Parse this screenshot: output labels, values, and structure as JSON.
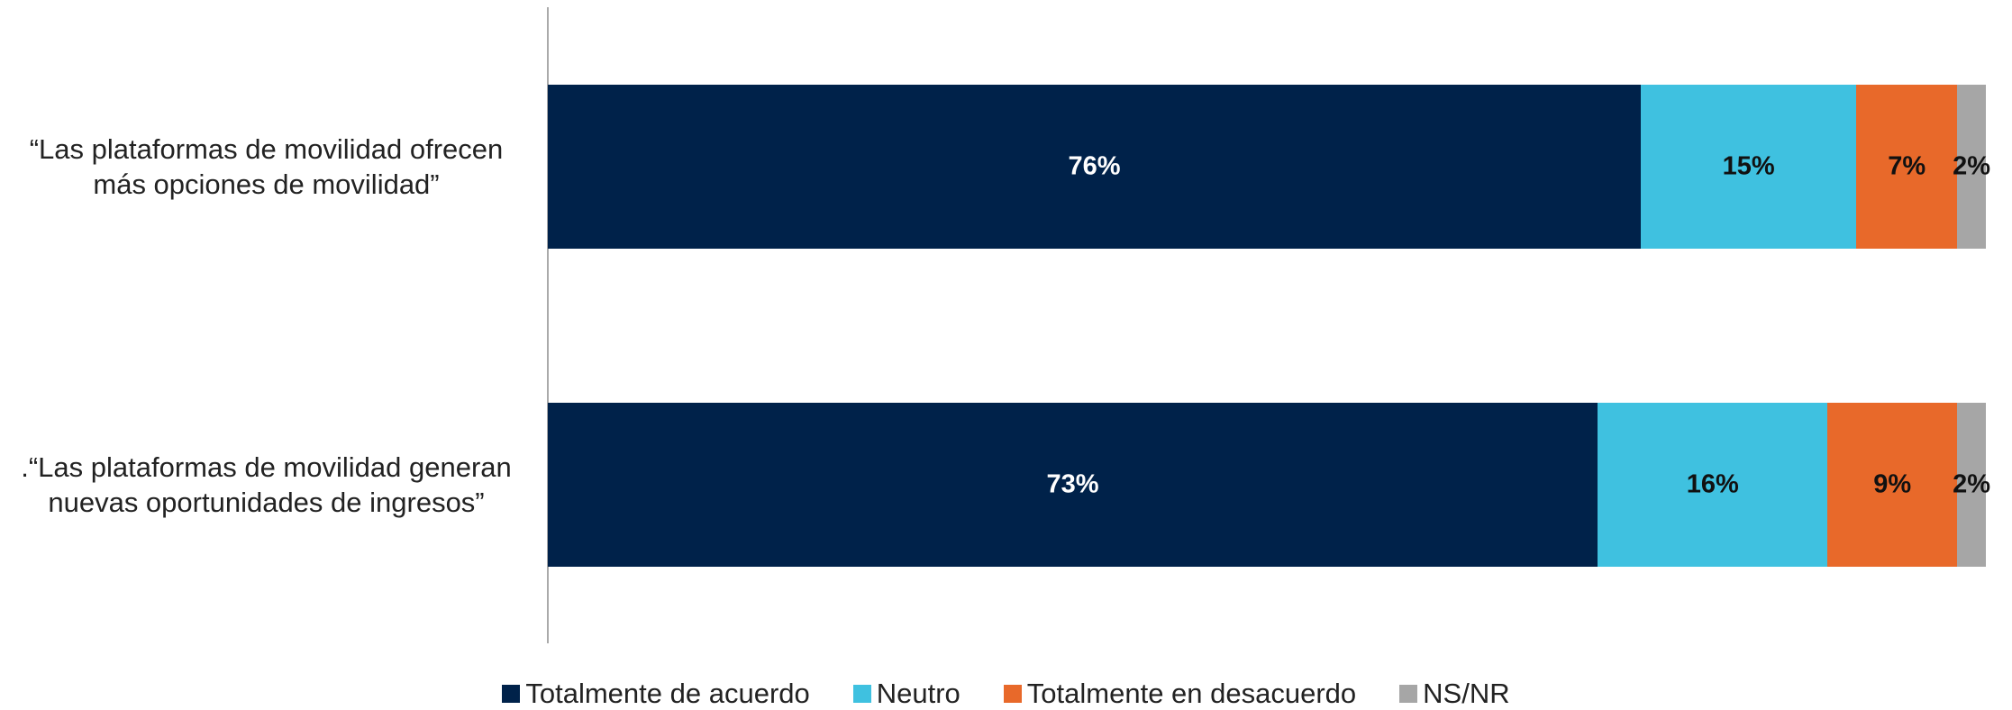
{
  "chart_data": {
    "type": "stacked-bar-horizontal",
    "categories": [
      "“Las plataformas de movilidad ofrecen más opciones de movilidad”",
      ".“Las plataformas de movilidad generan nuevas oportunidades de ingresos”"
    ],
    "xlim": [
      0,
      100
    ],
    "legend": "bottom",
    "series": [
      {
        "name": "Totalmente de acuerdo",
        "color": "#00224a",
        "values": [
          76,
          73
        ],
        "value_labels": [
          "76%",
          "73%"
        ]
      },
      {
        "name": "Neutro",
        "color": "#3fc1e0",
        "values": [
          15,
          16
        ],
        "value_labels": [
          "15%",
          "16%"
        ]
      },
      {
        "name": "Totalmente en desacuerdo",
        "color": "#e8692a",
        "values": [
          7,
          9
        ],
        "value_labels": [
          "7%",
          "9%"
        ]
      },
      {
        "name": "NS/NR",
        "color": "#a6a6a6",
        "values": [
          2,
          2
        ],
        "value_labels": [
          "2%",
          "2%"
        ]
      }
    ]
  }
}
